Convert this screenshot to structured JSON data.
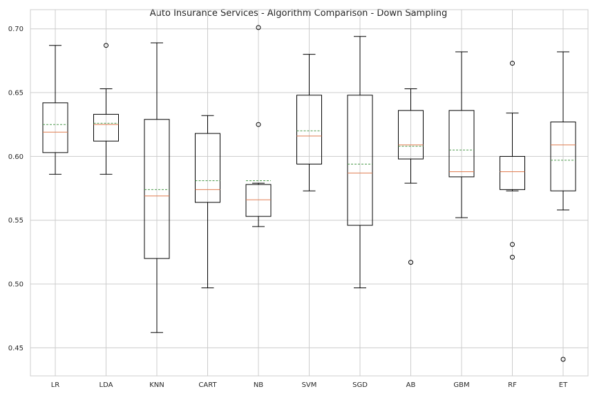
{
  "chart_data": {
    "type": "box",
    "title": "Auto Insurance Services - Algorithm Comparison - Down Sampling",
    "xlabel": "",
    "ylabel": "",
    "ylim": [
      0.428,
      0.715
    ],
    "yticks": [
      0.45,
      0.5,
      0.55,
      0.6,
      0.65,
      0.7
    ],
    "ytick_labels": [
      "0.45",
      "0.50",
      "0.55",
      "0.60",
      "0.65",
      "0.70"
    ],
    "grid": true,
    "categories": [
      "LR",
      "LDA",
      "KNN",
      "CART",
      "NB",
      "SVM",
      "SGD",
      "AB",
      "GBM",
      "RF",
      "ET"
    ],
    "boxes": [
      {
        "name": "LR",
        "whisker_low": 0.586,
        "q1": 0.603,
        "median": 0.619,
        "mean": 0.625,
        "q3": 0.642,
        "whisker_high": 0.687,
        "outliers": []
      },
      {
        "name": "LDA",
        "whisker_low": 0.586,
        "q1": 0.612,
        "median": 0.625,
        "mean": 0.626,
        "q3": 0.633,
        "whisker_high": 0.653,
        "outliers": [
          0.687
        ]
      },
      {
        "name": "KNN",
        "whisker_low": 0.462,
        "q1": 0.52,
        "median": 0.569,
        "mean": 0.574,
        "q3": 0.629,
        "whisker_high": 0.689,
        "outliers": []
      },
      {
        "name": "CART",
        "whisker_low": 0.497,
        "q1": 0.564,
        "median": 0.574,
        "mean": 0.581,
        "q3": 0.618,
        "whisker_high": 0.632,
        "outliers": []
      },
      {
        "name": "NB",
        "whisker_low": 0.545,
        "q1": 0.553,
        "median": 0.566,
        "mean": 0.581,
        "q3": 0.578,
        "whisker_high": 0.579,
        "outliers": [
          0.625,
          0.701
        ]
      },
      {
        "name": "SVM",
        "whisker_low": 0.573,
        "q1": 0.594,
        "median": 0.616,
        "mean": 0.62,
        "q3": 0.648,
        "whisker_high": 0.68,
        "outliers": []
      },
      {
        "name": "SGD",
        "whisker_low": 0.497,
        "q1": 0.546,
        "median": 0.587,
        "mean": 0.594,
        "q3": 0.648,
        "whisker_high": 0.694,
        "outliers": []
      },
      {
        "name": "AB",
        "whisker_low": 0.579,
        "q1": 0.598,
        "median": 0.609,
        "mean": 0.608,
        "q3": 0.636,
        "whisker_high": 0.653,
        "outliers": [
          0.517
        ]
      },
      {
        "name": "GBM",
        "whisker_low": 0.552,
        "q1": 0.584,
        "median": 0.588,
        "mean": 0.605,
        "q3": 0.636,
        "whisker_high": 0.682,
        "outliers": []
      },
      {
        "name": "RF",
        "whisker_low": 0.573,
        "q1": 0.574,
        "median": 0.588,
        "mean": 0.588,
        "q3": 0.6,
        "whisker_high": 0.634,
        "outliers": [
          0.531,
          0.521,
          0.673
        ]
      },
      {
        "name": "ET",
        "whisker_low": 0.558,
        "q1": 0.573,
        "median": 0.609,
        "mean": 0.597,
        "q3": 0.627,
        "whisker_high": 0.682,
        "outliers": [
          0.441
        ]
      }
    ],
    "colors": {
      "box": "#000000",
      "median": "#e07b4f",
      "mean": "#4c9a4c",
      "grid": "#cccccc",
      "spine": "#cccccc",
      "background": "#ffffff"
    }
  }
}
